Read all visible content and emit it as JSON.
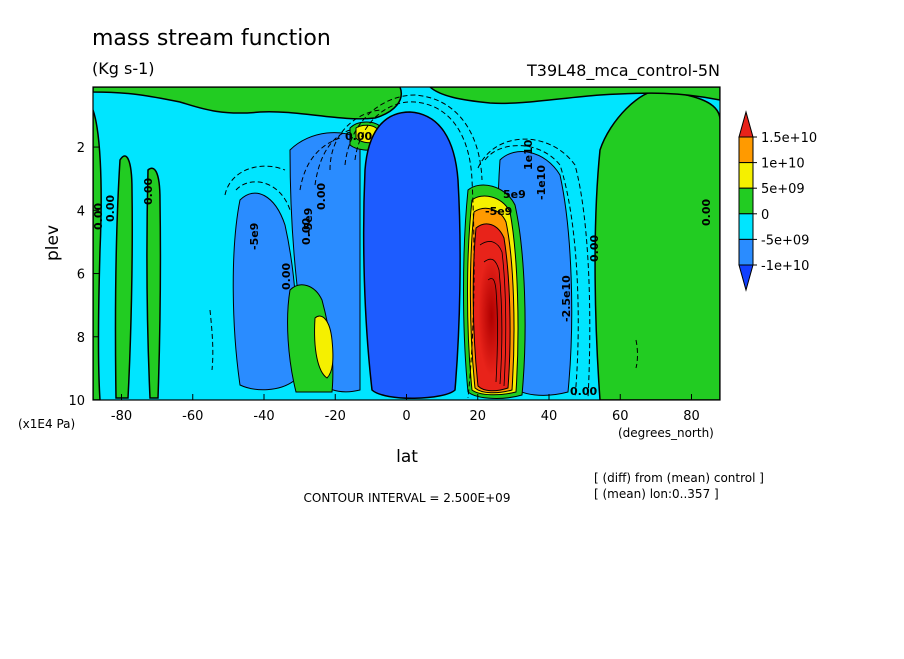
{
  "chart_data": {
    "type": "heatmap",
    "title": "mass stream function",
    "units": "(Kg s-1)",
    "run_label": "T39L48_mca_control-5N",
    "xlabel": "lat",
    "ylabel": "plev",
    "x_units": "(degrees_north)",
    "y_units": "(x1E4 Pa)",
    "xlim": [
      -88,
      88
    ],
    "ylim": [
      10,
      0.1
    ],
    "x_ticks": [
      -80,
      -60,
      -40,
      -20,
      0,
      20,
      40,
      60,
      80
    ],
    "x_tick_labels": [
      "-80",
      "-60",
      "-40",
      "-20",
      "0",
      "20",
      "40",
      "60",
      "80"
    ],
    "y_ticks": [
      2,
      4,
      6,
      8,
      10
    ],
    "y_tick_labels": [
      "2",
      "4",
      "6",
      "8",
      "10"
    ],
    "contour_interval_text": "CONTOUR INTERVAL = 2.500E+09",
    "notes": [
      "[ (diff) from (mean) control ]",
      "[ (mean) lon:0..357 ]"
    ],
    "colorbar": {
      "levels": [
        "1.5e+10",
        "1e+10",
        "5e+09",
        "0",
        "-5e+09",
        "-1e+10"
      ],
      "colors": [
        "#e8231a",
        "#ff9a00",
        "#f5f000",
        "#22cc22",
        "#00e5ff",
        "#2a8cff",
        "#1040ff"
      ]
    },
    "contour_labels": [
      "0.00",
      "0.00",
      "0.00",
      "0.00",
      "0.00",
      "0.00",
      "0.00",
      "0.00",
      "0.00",
      "0.00",
      "-5e9",
      "5e9",
      "1e10",
      "-1e10",
      "-2.5e10",
      "-5e9",
      "-5e9"
    ],
    "regions": [
      {
        "level": "0 to 5e+09",
        "lat": [
          -88,
          -72
        ],
        "plev": [
          0.1,
          10
        ]
      },
      {
        "level": "-5e+09 to -1e+10",
        "lat": [
          -42,
          -22
        ],
        "plev": [
          3.5,
          9.5
        ]
      },
      {
        "level": "5e+09 to 1e+10",
        "lat": [
          -26,
          -20
        ],
        "plev": [
          7.5,
          9
        ]
      },
      {
        "level": "below -1e+10",
        "lat": [
          -12,
          12
        ],
        "plev": [
          1,
          10
        ]
      },
      {
        "level": "above 1.5e+10",
        "lat": [
          18,
          32
        ],
        "plev": [
          4,
          10
        ]
      },
      {
        "level": "-5e+09 to -1e+10",
        "lat": [
          33,
          48
        ],
        "plev": [
          2.5,
          10
        ]
      },
      {
        "level": "0 to 5e+09",
        "lat": [
          55,
          88
        ],
        "plev": [
          0.5,
          10
        ]
      }
    ]
  }
}
